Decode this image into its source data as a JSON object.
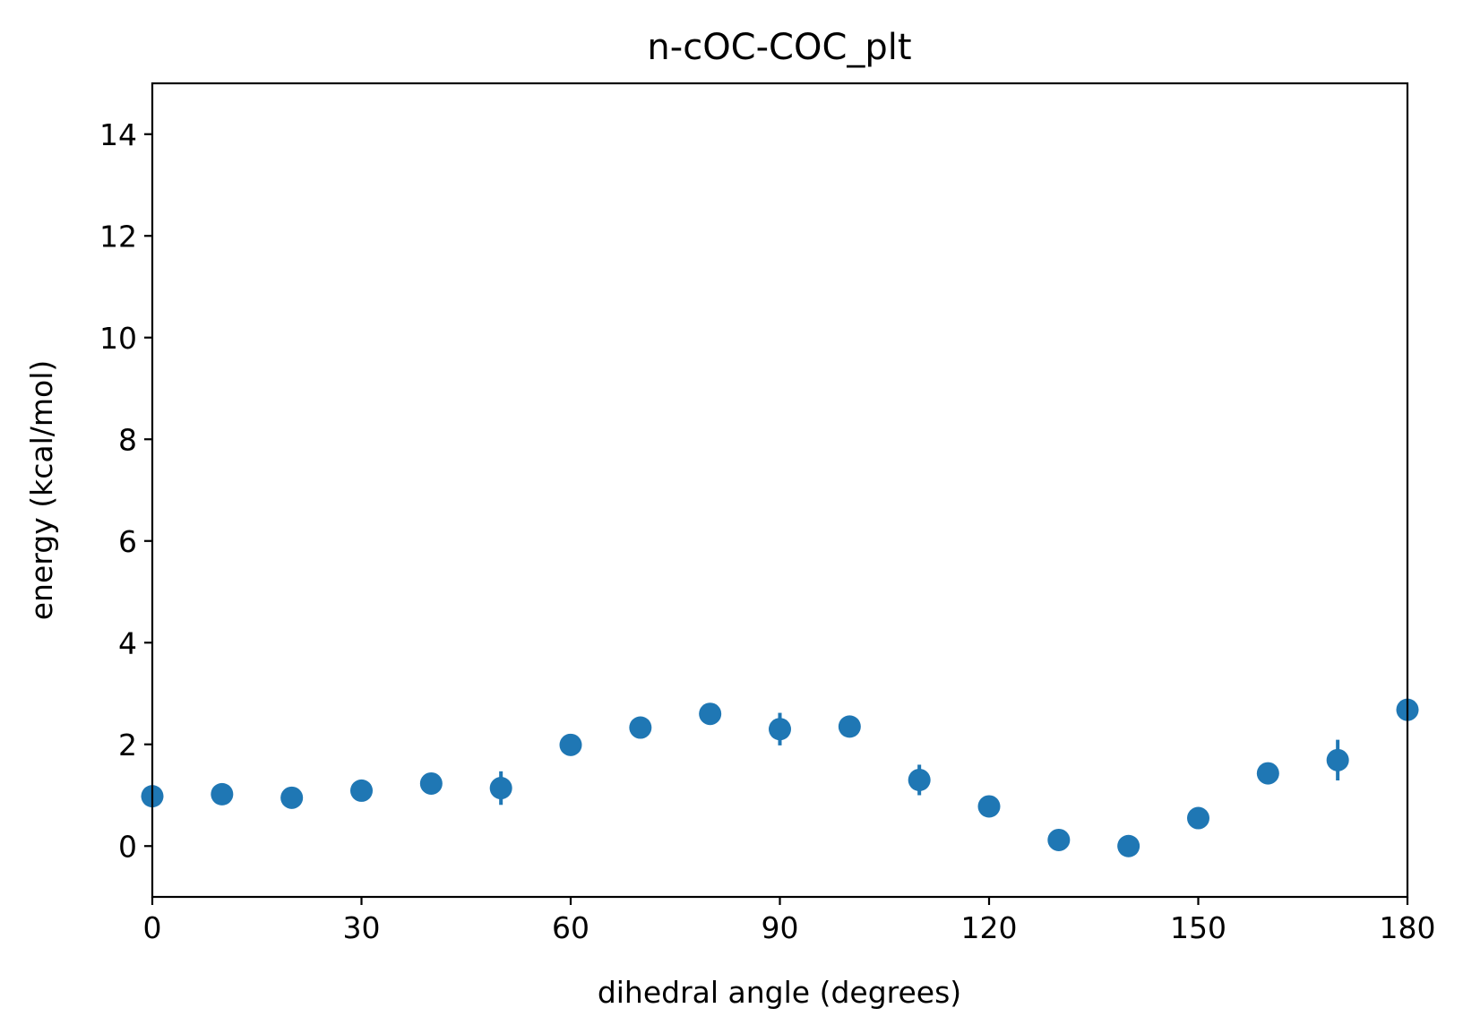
{
  "chart_data": {
    "type": "scatter",
    "title": "n-cOC-COC_plt",
    "xlabel": "dihedral angle (degrees)",
    "ylabel": "energy (kcal/mol)",
    "xlim": [
      0,
      180
    ],
    "ylim": [
      -1,
      15
    ],
    "xticks": [
      0,
      30,
      60,
      90,
      120,
      150,
      180
    ],
    "yticks": [
      0,
      2,
      4,
      6,
      8,
      10,
      12,
      14
    ],
    "xtick_labels": [
      "0",
      "30",
      "60",
      "90",
      "120",
      "150",
      "180"
    ],
    "ytick_labels": [
      "0",
      "2",
      "4",
      "6",
      "8",
      "10",
      "12",
      "14"
    ],
    "grid": false,
    "color": "#1f77b4",
    "series": [
      {
        "x": [
          0,
          10,
          20,
          30,
          40,
          50,
          60,
          70,
          80,
          90,
          100,
          110,
          120,
          130,
          140,
          150,
          160,
          170,
          180
        ],
        "y": [
          0.98,
          1.02,
          0.95,
          1.09,
          1.23,
          1.14,
          1.99,
          2.33,
          2.6,
          2.3,
          2.35,
          1.3,
          0.78,
          0.12,
          0.0,
          0.55,
          1.43,
          1.69,
          2.68
        ],
        "yerr": [
          0.0,
          0.0,
          0.0,
          0.0,
          0.0,
          0.33,
          0.0,
          0.0,
          0.2,
          0.32,
          0.0,
          0.3,
          0.0,
          0.0,
          0.0,
          0.0,
          0.0,
          0.4,
          0.0
        ]
      }
    ]
  }
}
